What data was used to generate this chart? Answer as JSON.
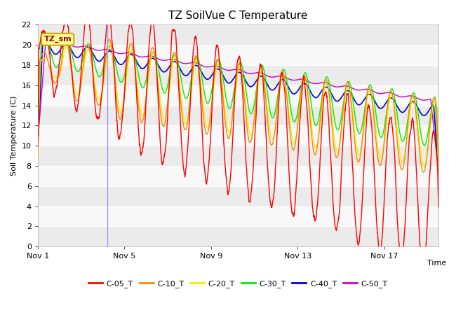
{
  "title": "TZ SoilVue C Temperature",
  "ylabel": "Soil Temperature (C)",
  "xlabel": "Time",
  "ylim": [
    0,
    22
  ],
  "annotation_text": "TZ_sm",
  "annotation_bg": "#FFFF99",
  "annotation_edge": "#CCAA00",
  "fig_facecolor": "#FFFFFF",
  "plot_bg_light": "#F0F0F0",
  "plot_bg_dark": "#E0E0E0",
  "grid_color": "#FFFFFF",
  "x_tick_labels": [
    "Nov 1",
    "Nov 5",
    "Nov 9",
    "Nov 13",
    "Nov 17"
  ],
  "x_tick_positions": [
    0,
    4,
    8,
    12,
    16
  ],
  "x_max": 18.5,
  "series": {
    "C-05_T": {
      "color": "#FF0000",
      "lw": 1.0
    },
    "C-10_T": {
      "color": "#FF8800",
      "lw": 1.0
    },
    "C-20_T": {
      "color": "#EEEE00",
      "lw": 1.0
    },
    "C-30_T": {
      "color": "#00EE00",
      "lw": 1.0
    },
    "C-40_T": {
      "color": "#0000DD",
      "lw": 1.2
    },
    "C-50_T": {
      "color": "#CC00CC",
      "lw": 1.0
    }
  },
  "legend_order": [
    "C-05_T",
    "C-10_T",
    "C-20_T",
    "C-30_T",
    "C-40_T",
    "C-50_T"
  ],
  "vertical_line_x": 3.2,
  "vertical_line_color": "#9999FF",
  "title_fontsize": 11,
  "axis_label_fontsize": 8,
  "tick_fontsize": 8,
  "legend_fontsize": 8,
  "yticks": [
    0,
    2,
    4,
    6,
    8,
    10,
    12,
    14,
    16,
    18,
    20,
    22
  ]
}
